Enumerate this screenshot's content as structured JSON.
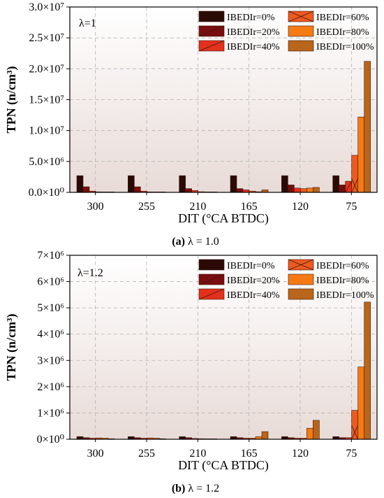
{
  "chart_data": [
    {
      "type": "bar",
      "panel_tag": "λ=1",
      "caption": {
        "letter": "(a)",
        "rest": " λ = 1.0"
      },
      "xlabel": "DIT (°CA BTDC)",
      "ylabel": "TPN (n/cm³)",
      "ylim": [
        0,
        30000000
      ],
      "ytick_values": [
        0,
        5000000,
        10000000,
        15000000,
        20000000,
        25000000,
        30000000
      ],
      "ytick_labels": [
        "0.0×10⁰",
        "5.0×10⁶",
        "1.0×10⁷",
        "1.5×10⁷",
        "2.0×10⁷",
        "2.5×10⁷",
        "3.0×10⁷"
      ],
      "categories": [
        "300",
        "255",
        "210",
        "165",
        "120",
        "75"
      ],
      "grid": true,
      "legend_position": "top-right",
      "series": [
        {
          "name": "IBEDIr=0%",
          "values": [
            2700000,
            2700000,
            2700000,
            2700000,
            2700000,
            2700000
          ]
        },
        {
          "name": "IBEDIr=20%",
          "values": [
            900000,
            900000,
            600000,
            600000,
            1200000,
            1200000
          ]
        },
        {
          "name": "IBEDIr=40%",
          "values": [
            200000,
            200000,
            300000,
            400000,
            700000,
            1800000
          ]
        },
        {
          "name": "IBEDIr=60%",
          "values": [
            80000,
            80000,
            100000,
            200000,
            600000,
            6000000
          ]
        },
        {
          "name": "IBEDIr=80%",
          "values": [
            50000,
            50000,
            50000,
            100000,
            700000,
            12200000
          ]
        },
        {
          "name": "IBEDIr=100%",
          "values": [
            30000,
            30000,
            30000,
            400000,
            800000,
            21200000
          ]
        }
      ]
    },
    {
      "type": "bar",
      "panel_tag": "λ=1.2",
      "caption": {
        "letter": "(b)",
        "rest": " λ = 1.2"
      },
      "xlabel": "DIT (°CA BTDC)",
      "ylabel": "TPN (n/cm³)",
      "ylim": [
        0,
        7000000
      ],
      "ytick_values": [
        0,
        1000000,
        2000000,
        3000000,
        4000000,
        5000000,
        6000000,
        7000000
      ],
      "ytick_labels": [
        "0×10⁰",
        "1×10⁶",
        "2×10⁶",
        "3×10⁶",
        "4×10⁶",
        "5×10⁶",
        "6×10⁶",
        "7×10⁶"
      ],
      "categories": [
        "300",
        "255",
        "210",
        "165",
        "120",
        "75"
      ],
      "grid": true,
      "legend_position": "top-right",
      "series": [
        {
          "name": "IBEDIr=0%",
          "values": [
            100000,
            100000,
            100000,
            100000,
            100000,
            100000
          ]
        },
        {
          "name": "IBEDIr=20%",
          "values": [
            60000,
            60000,
            60000,
            60000,
            60000,
            60000
          ]
        },
        {
          "name": "IBEDIr=40%",
          "values": [
            40000,
            40000,
            30000,
            40000,
            40000,
            60000
          ]
        },
        {
          "name": "IBEDIr=60%",
          "values": [
            50000,
            50000,
            20000,
            40000,
            40000,
            1100000
          ]
        },
        {
          "name": "IBEDIr=80%",
          "values": [
            40000,
            40000,
            10000,
            100000,
            420000,
            2750000
          ]
        },
        {
          "name": "IBEDIr=100%",
          "values": [
            20000,
            20000,
            10000,
            290000,
            720000,
            5220000
          ]
        }
      ]
    }
  ],
  "series_colors": [
    "#2b0a06",
    "#7a0d0d",
    "#e5301c",
    "#ee5a1f",
    "#f57a14",
    "#b9651a"
  ],
  "series_hatch": [
    false,
    true,
    true,
    true,
    false,
    false
  ]
}
